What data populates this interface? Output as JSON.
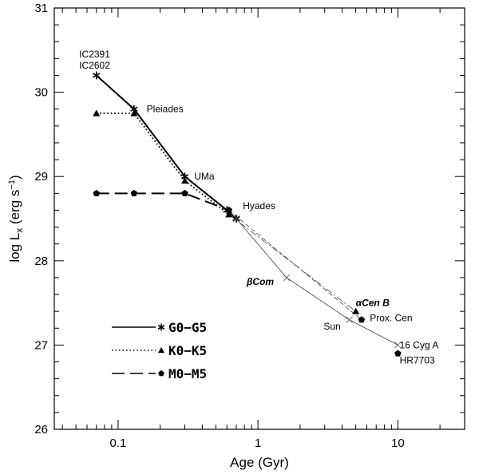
{
  "chart_data": {
    "type": "line",
    "title": "",
    "xlabel": "Age (Gyr)",
    "ylabel_main": "log L",
    "ylabel_sub": "x",
    "ylabel_units": " (erg s",
    "ylabel_exp": "−1",
    "ylabel_close": ")",
    "xscale": "log",
    "xlim": [
      0.035,
      30
    ],
    "ylim": [
      26,
      31
    ],
    "x_ticks": [
      {
        "value": 0.1,
        "label": "0.1"
      },
      {
        "value": 1,
        "label": "1"
      },
      {
        "value": 10,
        "label": "10"
      }
    ],
    "y_ticks": [
      {
        "value": 26,
        "label": "26"
      },
      {
        "value": 27,
        "label": "27"
      },
      {
        "value": 28,
        "label": "28"
      },
      {
        "value": 29,
        "label": "29"
      },
      {
        "value": 30,
        "label": "30"
      },
      {
        "value": 31,
        "label": "31"
      }
    ],
    "series": [
      {
        "name": "G0−G5",
        "style": "solid",
        "weight": "thick",
        "marker": "star",
        "x": [
          0.07,
          0.13,
          0.3,
          0.6,
          0.7
        ],
        "y": [
          30.2,
          29.8,
          29.0,
          28.6,
          28.5
        ]
      },
      {
        "name": "K0−K5",
        "style": "dotted",
        "weight": "thick",
        "marker": "triangle",
        "x": [
          0.07,
          0.13,
          0.3,
          0.62
        ],
        "y": [
          29.75,
          29.75,
          28.95,
          28.55
        ]
      },
      {
        "name": "M0−M5",
        "style": "dashed",
        "weight": "thick",
        "marker": "pentagon",
        "x": [
          0.07,
          0.13,
          0.3,
          0.62
        ],
        "y": [
          28.8,
          28.8,
          28.8,
          28.6
        ]
      },
      {
        "name": "",
        "style": "solid",
        "weight": "thin",
        "marker": "cross",
        "x": [
          0.7,
          1.6,
          4.5,
          10
        ],
        "y": [
          28.5,
          27.8,
          27.3,
          27.0
        ]
      },
      {
        "name": "",
        "style": "dashdot",
        "weight": "thin",
        "marker": "none",
        "x": [
          0.62,
          5.0
        ],
        "y": [
          28.55,
          27.4
        ]
      },
      {
        "name": "",
        "style": "dashed",
        "weight": "thin",
        "marker": "none",
        "x": [
          0.62,
          5.5
        ],
        "y": [
          28.6,
          27.3
        ]
      }
    ],
    "points": [
      {
        "x": 5.0,
        "y": 27.4,
        "marker": "triangle"
      },
      {
        "x": 5.5,
        "y": 27.3,
        "marker": "pentagon"
      },
      {
        "x": 10,
        "y": 26.9,
        "marker": "pentagon"
      }
    ],
    "annotations": [
      {
        "text": "IC2391",
        "x": 0.068,
        "y": 30.45,
        "anchor": "middle",
        "bold": false
      },
      {
        "text": "IC2602",
        "x": 0.068,
        "y": 30.32,
        "anchor": "middle",
        "bold": false
      },
      {
        "text": "Pleiades",
        "x": 0.16,
        "y": 29.8,
        "anchor": "start",
        "bold": false
      },
      {
        "text": "UMa",
        "x": 0.35,
        "y": 29.0,
        "anchor": "start",
        "bold": false
      },
      {
        "text": "Hyades",
        "x": 0.78,
        "y": 28.65,
        "anchor": "start",
        "bold": false
      },
      {
        "text": "βCom",
        "x": 1.3,
        "y": 27.75,
        "anchor": "end",
        "bold": true
      },
      {
        "text": "αCen B",
        "x": 5.0,
        "y": 27.5,
        "anchor": "start",
        "bold": true
      },
      {
        "text": "Prox. Cen",
        "x": 6.3,
        "y": 27.32,
        "anchor": "start",
        "bold": false
      },
      {
        "text": "Sun",
        "x": 3.9,
        "y": 27.22,
        "anchor": "end",
        "bold": false
      },
      {
        "text": "16 Cyg A",
        "x": 10.3,
        "y": 27.0,
        "anchor": "start",
        "bold": false
      },
      {
        "text": "HR7703",
        "x": 10.3,
        "y": 26.82,
        "anchor": "start",
        "bold": false
      }
    ],
    "legend": {
      "position": "lower-left",
      "entries": [
        {
          "label": "G0−G5",
          "style": "solid",
          "marker": "star"
        },
        {
          "label": "K0−K5",
          "style": "dotted",
          "marker": "triangle"
        },
        {
          "label": "M0−M5",
          "style": "dashed",
          "marker": "pentagon"
        }
      ]
    }
  }
}
